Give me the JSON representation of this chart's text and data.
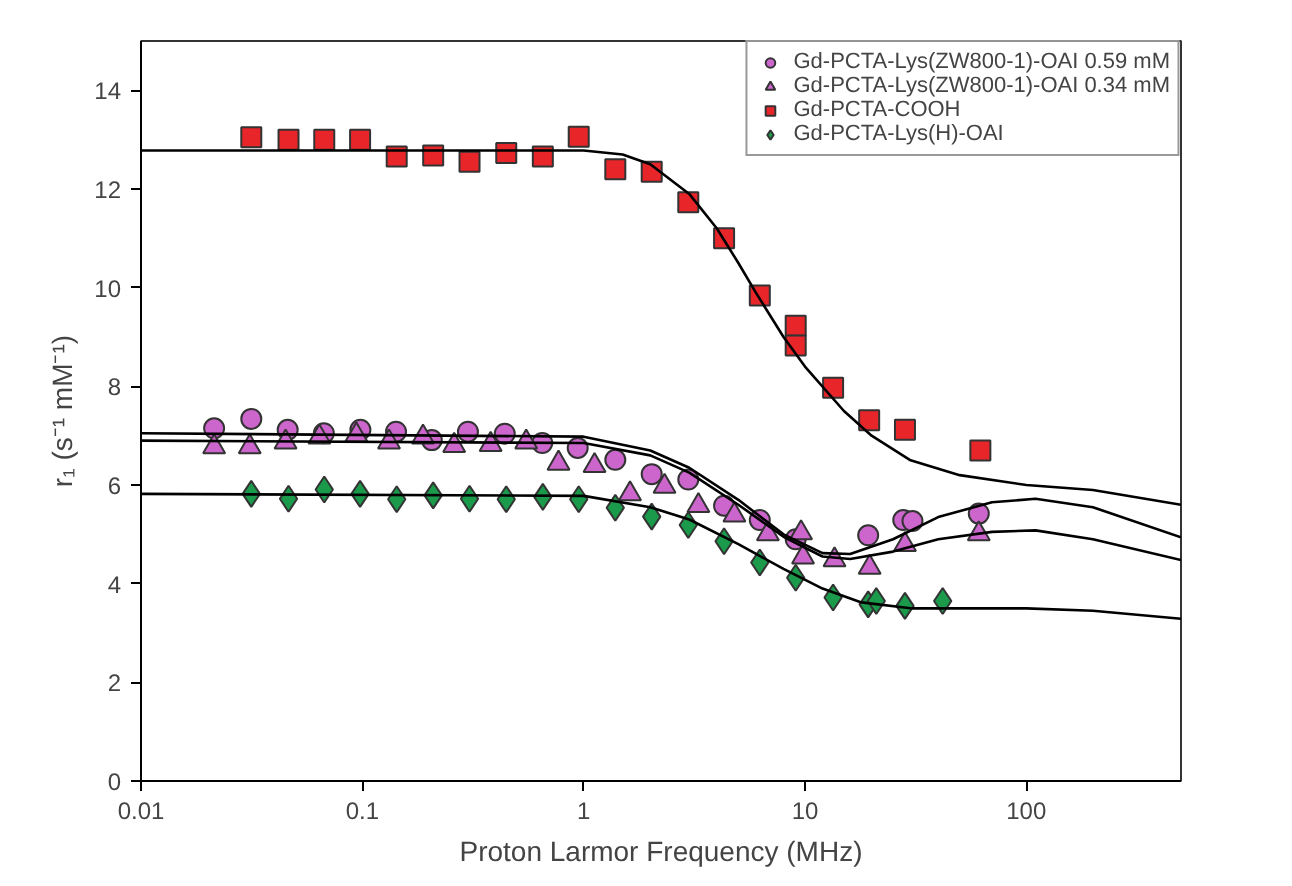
{
  "chart_data": {
    "type": "scatter",
    "xlabel": "Proton Larmor Frequency (MHz)",
    "ylabel": "r₁ (s⁻¹ mM⁻¹)",
    "log": "x",
    "xlim": [
      0.01,
      500
    ],
    "ylim": [
      0,
      15
    ],
    "xticks": [
      0.01,
      0.1,
      1,
      10,
      100
    ],
    "yticks": [
      0,
      2,
      4,
      6,
      8,
      10,
      12,
      14
    ],
    "grid": false,
    "legend": "top right",
    "series": [
      {
        "name": "Gd-PCTA-Lys(ZW800-1)-OAI 0.59 mM",
        "color": "#cc66cc",
        "marker": "circle",
        "x": [
          0.0214,
          0.0315,
          0.046,
          0.067,
          0.098,
          0.142,
          0.206,
          0.3,
          0.44,
          0.65,
          0.94,
          1.39,
          2.03,
          2.97,
          4.31,
          6.25,
          9.08,
          19.3,
          27.8,
          30.6,
          61
        ],
        "values": [
          7.15,
          7.34,
          7.12,
          7.05,
          7.12,
          7.08,
          6.91,
          7.08,
          7.04,
          6.85,
          6.75,
          6.51,
          6.22,
          6.11,
          5.58,
          5.29,
          4.9,
          4.98,
          5.29,
          5.27,
          5.42
        ]
      },
      {
        "name": "Gd-PCTA-Lys(ZW800-1)-OAI 0.34 mM",
        "color": "#cc66cc",
        "marker": "triangle",
        "x": [
          0.0214,
          0.031,
          0.045,
          0.064,
          0.094,
          0.132,
          0.188,
          0.26,
          0.38,
          0.55,
          0.77,
          1.12,
          1.62,
          2.32,
          3.3,
          4.8,
          6.8,
          9.6,
          9.8,
          13.6,
          19.6,
          28.3,
          61
        ],
        "values": [
          6.77,
          6.77,
          6.87,
          6.97,
          7.01,
          6.87,
          6.97,
          6.8,
          6.82,
          6.87,
          6.44,
          6.39,
          5.82,
          5.97,
          5.58,
          5.39,
          5.01,
          5.03,
          4.54,
          4.48,
          4.33,
          4.79,
          5.01
        ]
      },
      {
        "name": "Gd-PCTA-COOH",
        "color": "#e8262a",
        "marker": "square",
        "x": [
          0.0315,
          0.0464,
          0.0673,
          0.0977,
          0.143,
          0.209,
          0.305,
          0.447,
          0.654,
          0.95,
          1.39,
          2.03,
          2.97,
          4.31,
          6.25,
          9.08,
          9.08,
          13.4,
          19.5,
          28.3,
          62
        ],
        "values": [
          13.05,
          13.0,
          13.0,
          13.0,
          12.66,
          12.68,
          12.55,
          12.73,
          12.66,
          13.06,
          12.4,
          12.35,
          11.73,
          11.0,
          9.84,
          9.23,
          8.83,
          7.97,
          7.31,
          7.12,
          6.7
        ]
      },
      {
        "name": "Gd-PCTA-Lys(H)-OAI",
        "color": "#1a9a4a",
        "marker": "diamond",
        "x": [
          0.0315,
          0.0464,
          0.0673,
          0.0977,
          0.143,
          0.209,
          0.305,
          0.447,
          0.654,
          0.95,
          1.39,
          2.03,
          2.97,
          4.31,
          6.25,
          9.08,
          13.4,
          19.3,
          21,
          28.3,
          41.9
        ],
        "values": [
          5.82,
          5.72,
          5.91,
          5.82,
          5.71,
          5.79,
          5.72,
          5.71,
          5.76,
          5.71,
          5.54,
          5.36,
          5.19,
          4.86,
          4.43,
          4.12,
          3.72,
          3.58,
          3.65,
          3.55,
          3.65
        ]
      },
      {
        "type": "line",
        "color": "#000000",
        "x": [
          0.01,
          1,
          2,
          3,
          5,
          8,
          12,
          16,
          25,
          40,
          70,
          110,
          200,
          500
        ],
        "values": [
          7.05,
          6.98,
          6.7,
          6.35,
          5.7,
          5.0,
          4.62,
          4.6,
          4.9,
          5.35,
          5.65,
          5.72,
          5.55,
          4.94
        ]
      },
      {
        "type": "line",
        "color": "#000000",
        "x": [
          0.01,
          1,
          2,
          3,
          5,
          8,
          12,
          16,
          25,
          40,
          70,
          110,
          200,
          500
        ],
        "values": [
          6.9,
          6.85,
          6.6,
          6.25,
          5.6,
          4.95,
          4.55,
          4.5,
          4.65,
          4.9,
          5.05,
          5.08,
          4.9,
          4.48
        ]
      },
      {
        "type": "line",
        "color": "#000000",
        "x": [
          0.01,
          1,
          1.5,
          2,
          3,
          4,
          5,
          6,
          8,
          10,
          15,
          20,
          30,
          50,
          100,
          200,
          500
        ],
        "values": [
          12.78,
          12.78,
          12.7,
          12.5,
          11.9,
          11.2,
          10.5,
          9.9,
          9.0,
          8.4,
          7.5,
          7.0,
          6.5,
          6.2,
          6.0,
          5.9,
          5.6
        ]
      },
      {
        "type": "line",
        "color": "#000000",
        "x": [
          0.01,
          1,
          2,
          3,
          5,
          8,
          12,
          18,
          30,
          60,
          100,
          200,
          500
        ],
        "values": [
          5.82,
          5.78,
          5.55,
          5.3,
          4.8,
          4.3,
          3.9,
          3.62,
          3.5,
          3.5,
          3.5,
          3.45,
          3.29
        ]
      }
    ]
  }
}
